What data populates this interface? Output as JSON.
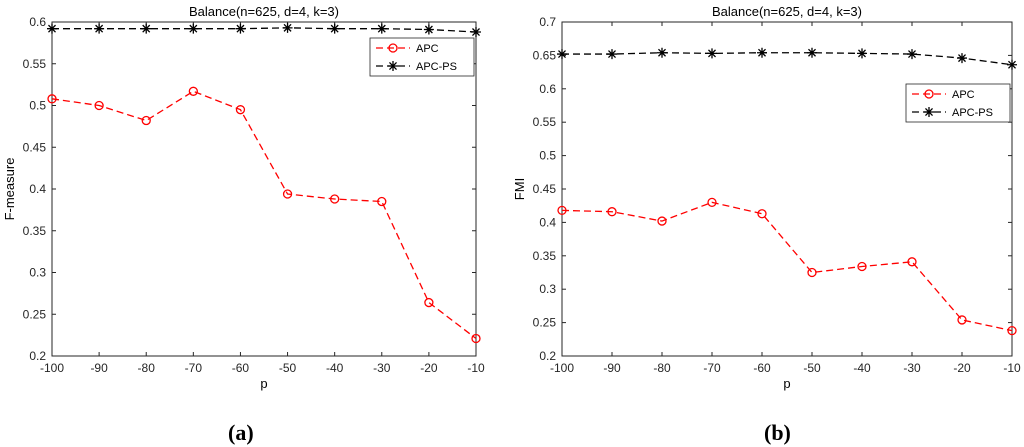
{
  "colors": {
    "apc": "#ff0000",
    "apcps": "#000000",
    "axis": "#262626"
  },
  "chart_data": [
    {
      "type": "line",
      "title": "Balance(n=625, d=4, k=3)",
      "xlabel": "p",
      "ylabel": "F-measure",
      "xlim": [
        -100,
        -10
      ],
      "ylim": [
        0.2,
        0.6
      ],
      "xticks": [
        -100,
        -90,
        -80,
        -70,
        -60,
        -50,
        -40,
        -30,
        -20,
        -10
      ],
      "yticks": [
        0.2,
        0.25,
        0.3,
        0.35,
        0.4,
        0.45,
        0.5,
        0.55,
        0.6
      ],
      "ytick_labels": [
        "0.2",
        "0.25",
        "0.3",
        "0.35",
        "0.4",
        "0.45",
        "0.5",
        "0.55",
        "0.6"
      ],
      "x": [
        -100,
        -90,
        -80,
        -70,
        -60,
        -50,
        -40,
        -30,
        -20,
        -10
      ],
      "series": [
        {
          "name": "APC",
          "marker": "circle",
          "color": "#ff0000",
          "values": [
            0.508,
            0.5,
            0.482,
            0.517,
            0.495,
            0.394,
            0.388,
            0.385,
            0.264,
            0.221
          ]
        },
        {
          "name": "APC-PS",
          "marker": "star",
          "color": "#000000",
          "values": [
            0.592,
            0.592,
            0.592,
            0.592,
            0.592,
            0.593,
            0.592,
            0.592,
            0.591,
            0.588
          ]
        }
      ],
      "legend": "top-right",
      "grid": false,
      "panel_label": "(a)"
    },
    {
      "type": "line",
      "title": "Balance(n=625, d=4, k=3)",
      "xlabel": "p",
      "ylabel": "FMI",
      "xlim": [
        -100,
        -10
      ],
      "ylim": [
        0.2,
        0.7
      ],
      "xticks": [
        -100,
        -90,
        -80,
        -70,
        -60,
        -50,
        -40,
        -30,
        -20,
        -10
      ],
      "yticks": [
        0.2,
        0.25,
        0.3,
        0.35,
        0.4,
        0.45,
        0.5,
        0.55,
        0.6,
        0.65,
        0.7
      ],
      "ytick_labels": [
        "0.2",
        "0.25",
        "0.3",
        "0.35",
        "0.4",
        "0.45",
        "0.5",
        "0.55",
        "0.6",
        "0.65",
        "0.7"
      ],
      "x": [
        -100,
        -90,
        -80,
        -70,
        -60,
        -50,
        -40,
        -30,
        -20,
        -10
      ],
      "series": [
        {
          "name": "APC",
          "marker": "circle",
          "color": "#ff0000",
          "values": [
            0.418,
            0.416,
            0.402,
            0.43,
            0.413,
            0.325,
            0.334,
            0.341,
            0.254,
            0.238
          ]
        },
        {
          "name": "APC-PS",
          "marker": "star",
          "color": "#000000",
          "values": [
            0.652,
            0.652,
            0.654,
            0.653,
            0.654,
            0.654,
            0.653,
            0.652,
            0.646,
            0.636
          ]
        }
      ],
      "legend": "top-right",
      "grid": false,
      "panel_label": "(b)"
    }
  ]
}
